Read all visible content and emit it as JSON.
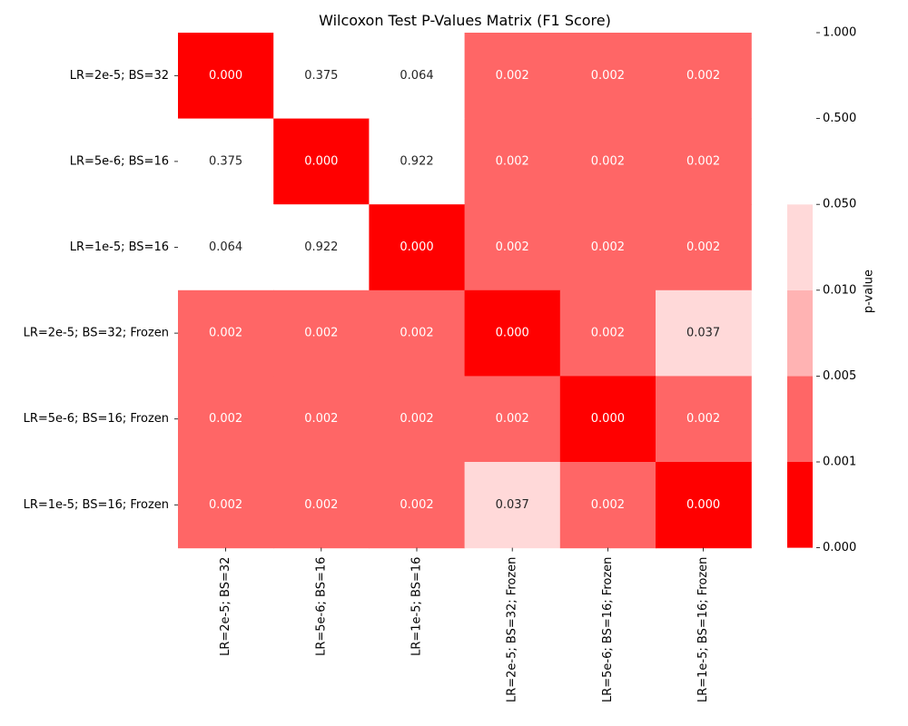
{
  "chart_data": {
    "type": "heatmap",
    "title": "Wilcoxon Test P-Values Matrix (F1 Score)",
    "row_labels": [
      "LR=2e-5; BS=32",
      "LR=5e-6; BS=16",
      "LR=1e-5; BS=16",
      "LR=2e-5; BS=32; Frozen",
      "LR=5e-6; BS=16; Frozen",
      "LR=1e-5; BS=16; Frozen"
    ],
    "col_labels": [
      "LR=2e-5; BS=32",
      "LR=5e-6; BS=16",
      "LR=1e-5; BS=16",
      "LR=2e-5; BS=32; Frozen",
      "LR=5e-6; BS=16; Frozen",
      "LR=1e-5; BS=16; Frozen"
    ],
    "values": [
      [
        0.0,
        0.375,
        0.064,
        0.002,
        0.002,
        0.002
      ],
      [
        0.375,
        0.0,
        0.922,
        0.002,
        0.002,
        0.002
      ],
      [
        0.064,
        0.922,
        0.0,
        0.002,
        0.002,
        0.002
      ],
      [
        0.002,
        0.002,
        0.002,
        0.0,
        0.002,
        0.037
      ],
      [
        0.002,
        0.002,
        0.002,
        0.002,
        0.0,
        0.002
      ],
      [
        0.002,
        0.002,
        0.002,
        0.037,
        0.002,
        0.0
      ]
    ],
    "value_labels": [
      [
        "0.000",
        "0.375",
        "0.064",
        "0.002",
        "0.002",
        "0.002"
      ],
      [
        "0.375",
        "0.000",
        "0.922",
        "0.002",
        "0.002",
        "0.002"
      ],
      [
        "0.064",
        "0.922",
        "0.000",
        "0.002",
        "0.002",
        "0.002"
      ],
      [
        "0.002",
        "0.002",
        "0.002",
        "0.000",
        "0.002",
        "0.037"
      ],
      [
        "0.002",
        "0.002",
        "0.002",
        "0.002",
        "0.000",
        "0.002"
      ],
      [
        "0.002",
        "0.002",
        "0.002",
        "0.037",
        "0.002",
        "0.000"
      ]
    ],
    "colorbar": {
      "label": "p-value",
      "boundaries": [
        0.0,
        0.001,
        0.005,
        0.01,
        0.05,
        1.0
      ],
      "tick_labels": [
        "0.000",
        "0.001",
        "0.005",
        "0.010",
        "0.050",
        "0.500",
        "1.000"
      ],
      "tick_values": [
        0.0,
        0.001,
        0.005,
        0.01,
        0.05,
        0.5,
        1.0
      ],
      "colors": [
        "#ff0000",
        "#ff6666",
        "#ffb3b3",
        "#ffd9d9",
        "#ffffff"
      ]
    },
    "text_colors": {
      "on_dark": "#ffffff",
      "on_light": "#262626"
    },
    "grid": false
  }
}
